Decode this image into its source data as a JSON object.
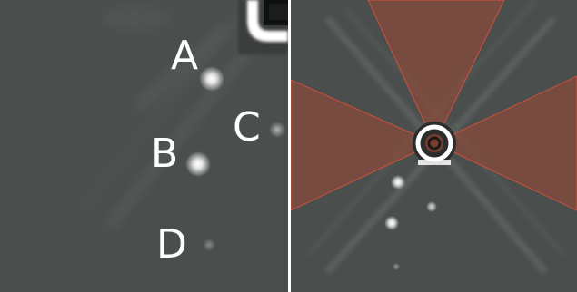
{
  "left_panel": {
    "labels": {
      "a": "A",
      "b": "B",
      "c": "C",
      "d": "D"
    }
  },
  "colors": {
    "background_gray": "#4a4f4e",
    "divider": "#ffffff",
    "wedge_fill": "#b0472f",
    "wedge_edge": "#d0503a",
    "point_source": "#ffffff",
    "label_text": "#ffffff"
  }
}
